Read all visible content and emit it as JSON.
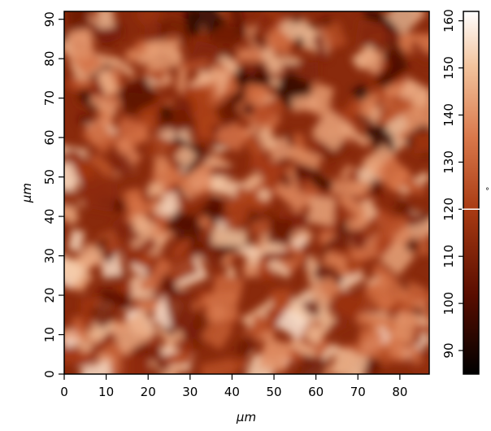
{
  "chart_data": {
    "type": "heatmap",
    "title": "",
    "xlabel": "µm",
    "ylabel": "µm",
    "xlim": [
      0,
      87
    ],
    "ylim": [
      0,
      92
    ],
    "x_ticks": [
      0,
      10,
      20,
      30,
      40,
      50,
      60,
      70,
      80
    ],
    "y_ticks": [
      0,
      10,
      20,
      30,
      40,
      50,
      60,
      70,
      80,
      90
    ],
    "colorbar": {
      "label": "",
      "range": [
        85,
        162
      ],
      "ticks": [
        90,
        100,
        110,
        120,
        130,
        140,
        150,
        160
      ],
      "marker_value": 120,
      "colormap": [
        "#000000",
        "#5a0d00",
        "#a83a12",
        "#d9774a",
        "#f3c49e",
        "#ffffff"
      ]
    },
    "grid": false,
    "legend": "colorbar-right"
  }
}
